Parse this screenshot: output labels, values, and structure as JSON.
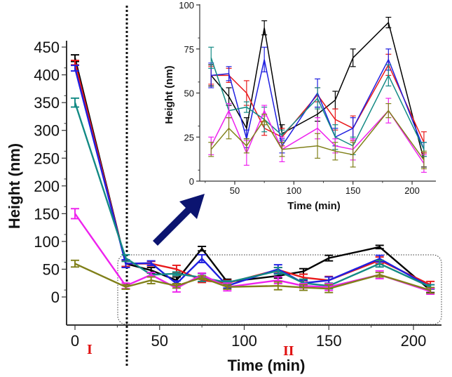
{
  "chart_data": {
    "type": "line",
    "main": {
      "xlabel": "Time (min)",
      "ylabel": "Height (nm)",
      "xlim": [
        -5,
        215
      ],
      "ylim": [
        -20,
        460
      ],
      "xticks": [
        "0",
        "50",
        "100",
        "150",
        "200"
      ],
      "yticks": [
        "0",
        "50",
        "100",
        "150",
        "200",
        "250",
        "300",
        "350",
        "400",
        "450"
      ],
      "region_labels": [
        "I",
        "II"
      ],
      "divider_x": 30
    },
    "inset": {
      "xlabel": "Time (min)",
      "ylabel": "Height (nm)",
      "xlim": [
        25,
        215
      ],
      "ylim": [
        0,
        100
      ],
      "xticks": [
        "50",
        "100",
        "150",
        "200"
      ],
      "yticks": [
        "0",
        "25",
        "50",
        "75",
        "100"
      ]
    },
    "x": [
      0,
      30,
      45,
      60,
      75,
      90,
      120,
      135,
      150,
      180,
      210
    ],
    "series": [
      {
        "name": "black",
        "color": "#000000",
        "values": [
          430,
          60,
          48,
          30,
          87,
          27,
          38,
          46,
          70,
          90,
          12
        ],
        "error": [
          6,
          6,
          5,
          6,
          4,
          5,
          4,
          5,
          5,
          3,
          4
        ]
      },
      {
        "name": "red",
        "color": "#e8191b",
        "values": [
          422,
          60,
          60,
          50,
          30,
          25,
          49,
          35,
          30,
          66,
          22
        ],
        "error": [
          4,
          5,
          4,
          7,
          4,
          5,
          4,
          6,
          7,
          6,
          6
        ]
      },
      {
        "name": "blue",
        "color": "#1f1fe0",
        "values": [
          412,
          60,
          61,
          24,
          69,
          20,
          50,
          25,
          30,
          69,
          18
        ],
        "error": [
          5,
          7,
          4,
          5,
          7,
          4,
          8,
          5,
          6,
          6,
          4
        ]
      },
      {
        "name": "teal",
        "color": "#138a84",
        "values": [
          350,
          70,
          40,
          42,
          35,
          26,
          47,
          25,
          20,
          60,
          18
        ],
        "error": [
          8,
          6,
          4,
          3,
          7,
          3,
          6,
          7,
          5,
          6,
          4
        ]
      },
      {
        "name": "magenta",
        "color": "#ee22ee",
        "values": [
          150,
          20,
          40,
          16,
          40,
          18,
          30,
          20,
          18,
          40,
          10
        ],
        "error": [
          9,
          5,
          4,
          7,
          3,
          7,
          6,
          4,
          6,
          7,
          5
        ]
      },
      {
        "name": "olive",
        "color": "#808019",
        "values": [
          60,
          18,
          30,
          20,
          35,
          18,
          20,
          17,
          15,
          40,
          12
        ],
        "error": [
          6,
          4,
          6,
          4,
          3,
          4,
          7,
          5,
          7,
          4,
          5
        ]
      }
    ],
    "arrow_color": "#0b1470"
  }
}
